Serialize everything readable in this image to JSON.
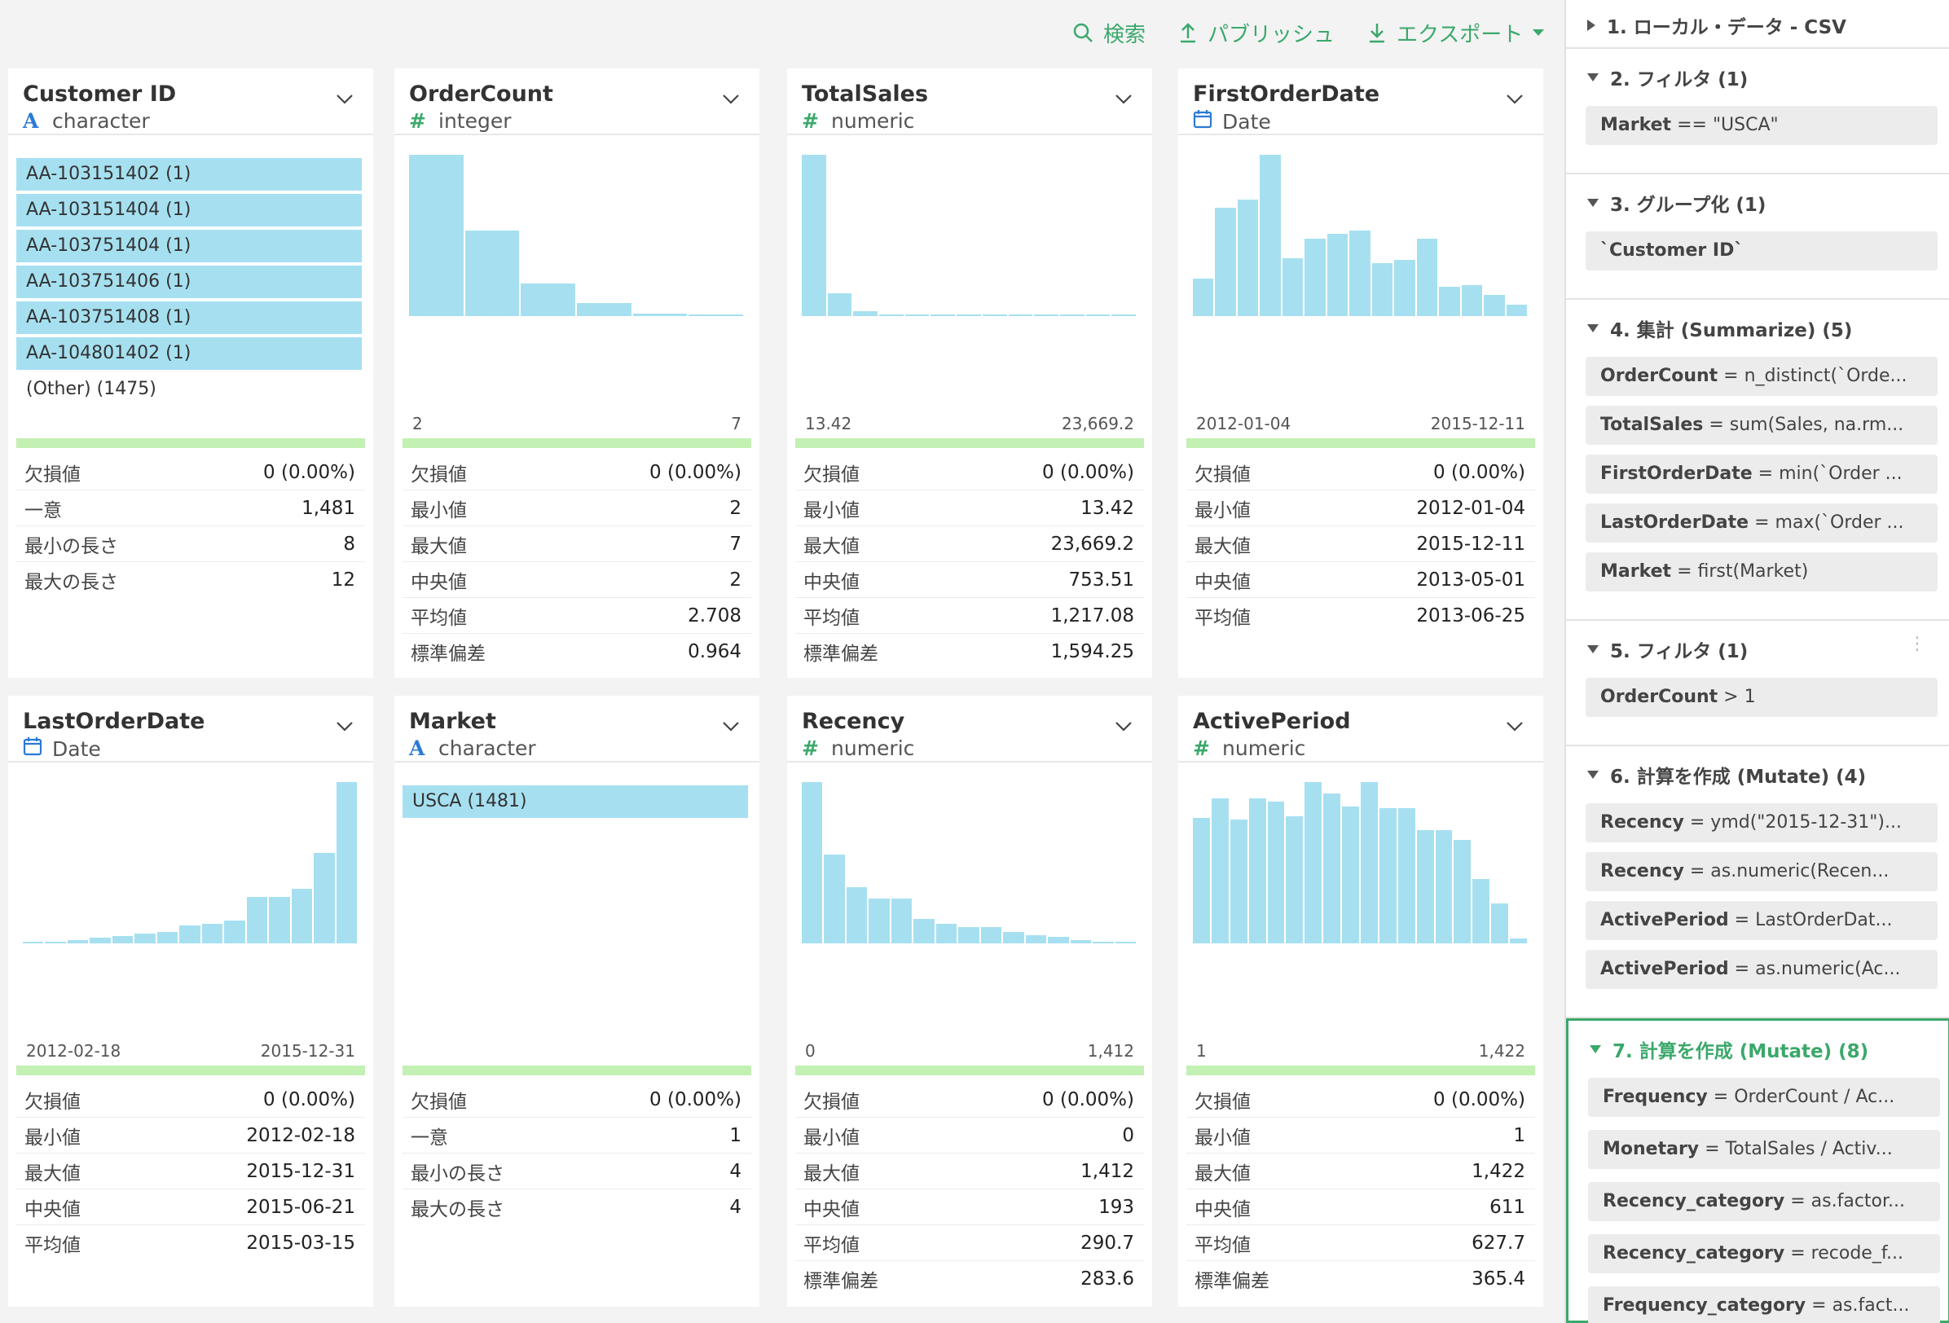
{
  "toolbar": {
    "search_label": "検索",
    "publish_label": "パブリッシュ",
    "export_label": "エクスポート"
  },
  "colors": {
    "accent": "#3ba86b",
    "bar": "#a6e0f0",
    "quality": "#c3f0b3",
    "char_icon": "#2a7ad6"
  },
  "columns": [
    {
      "name": "Customer ID",
      "type": "character",
      "type_icon": "A",
      "categories": [
        "AA-103151402 (1)",
        "AA-103151404 (1)",
        "AA-103751404 (1)",
        "AA-103751406 (1)",
        "AA-103751408 (1)",
        "AA-104801402 (1)"
      ],
      "other": "(Other) (1475)",
      "stats": [
        [
          "欠損値",
          "0 (0.00%)"
        ],
        [
          "一意",
          "1,481"
        ],
        [
          "最小の長さ",
          "8"
        ],
        [
          "最大の長さ",
          "12"
        ]
      ]
    },
    {
      "name": "OrderCount",
      "type": "integer",
      "type_icon": "#",
      "axis_min": "2",
      "axis_max": "7",
      "histogram": [
        100,
        53,
        20,
        8,
        1.5,
        1
      ],
      "stats": [
        [
          "欠損値",
          "0 (0.00%)"
        ],
        [
          "最小値",
          "2"
        ],
        [
          "最大値",
          "7"
        ],
        [
          "中央値",
          "2"
        ],
        [
          "平均値",
          "2.708"
        ],
        [
          "標準偏差",
          "0.964"
        ]
      ]
    },
    {
      "name": "TotalSales",
      "type": "numeric",
      "type_icon": "#",
      "axis_min": "13.42",
      "axis_max": "23,669.2",
      "histogram": [
        100,
        14,
        3,
        1,
        0.5,
        0.5,
        0.5,
        0.5,
        0.5,
        0.5,
        0.5,
        0.5,
        0.5
      ],
      "stats": [
        [
          "欠損値",
          "0 (0.00%)"
        ],
        [
          "最小値",
          "13.42"
        ],
        [
          "最大値",
          "23,669.2"
        ],
        [
          "中央値",
          "753.51"
        ],
        [
          "平均値",
          "1,217.08"
        ],
        [
          "標準偏差",
          "1,594.25"
        ]
      ]
    },
    {
      "name": "FirstOrderDate",
      "type": "Date",
      "type_icon": "calendar",
      "axis_min": "2012-01-04",
      "axis_max": "2015-12-11",
      "histogram": [
        23,
        67,
        72,
        100,
        36,
        48,
        51,
        53,
        33,
        35,
        48,
        18,
        19,
        13,
        7
      ],
      "stats": [
        [
          "欠損値",
          "0 (0.00%)"
        ],
        [
          "最小値",
          "2012-01-04"
        ],
        [
          "最大値",
          "2015-12-11"
        ],
        [
          "中央値",
          "2013-05-01"
        ],
        [
          "平均値",
          "2013-06-25"
        ]
      ]
    },
    {
      "name": "LastOrderDate",
      "type": "Date",
      "type_icon": "calendar",
      "axis_min": "2012-02-18",
      "axis_max": "2015-12-31",
      "histogram": [
        0.5,
        1,
        2,
        3.5,
        4.5,
        6,
        7,
        11,
        12,
        14,
        29,
        29,
        34,
        56,
        100
      ],
      "stats": [
        [
          "欠損値",
          "0 (0.00%)"
        ],
        [
          "最小値",
          "2012-02-18"
        ],
        [
          "最大値",
          "2015-12-31"
        ],
        [
          "中央値",
          "2015-06-21"
        ],
        [
          "平均値",
          "2015-03-15"
        ]
      ]
    },
    {
      "name": "Market",
      "type": "character",
      "type_icon": "A",
      "categories": [
        "USCA (1481)"
      ],
      "other": "",
      "stats": [
        [
          "欠損値",
          "0 (0.00%)"
        ],
        [
          "一意",
          "1"
        ],
        [
          "最小の長さ",
          "4"
        ],
        [
          "最大の長さ",
          "4"
        ]
      ]
    },
    {
      "name": "Recency",
      "type": "numeric",
      "type_icon": "#",
      "axis_min": "0",
      "axis_max": "1,412",
      "histogram": [
        100,
        55,
        35,
        28,
        28,
        15,
        12,
        10,
        10,
        7,
        5,
        4,
        2,
        1,
        0.5
      ],
      "stats": [
        [
          "欠損値",
          "0 (0.00%)"
        ],
        [
          "最小値",
          "0"
        ],
        [
          "最大値",
          "1,412"
        ],
        [
          "中央値",
          "193"
        ],
        [
          "平均値",
          "290.7"
        ],
        [
          "標準偏差",
          "283.6"
        ]
      ]
    },
    {
      "name": "ActivePeriod",
      "type": "numeric",
      "type_icon": "#",
      "axis_min": "1",
      "axis_max": "1,422",
      "histogram": [
        78,
        90,
        77,
        90,
        88,
        79,
        100,
        93,
        85,
        100,
        84,
        84,
        70,
        70,
        64,
        40,
        25,
        3
      ],
      "stats": [
        [
          "欠損値",
          "0 (0.00%)"
        ],
        [
          "最小値",
          "1"
        ],
        [
          "最大値",
          "1,422"
        ],
        [
          "中央値",
          "611"
        ],
        [
          "平均値",
          "627.7"
        ],
        [
          "標準偏差",
          "365.4"
        ]
      ]
    }
  ],
  "steps": [
    {
      "title": "1. ローカル・データ - CSV",
      "expanded": false,
      "commands": []
    },
    {
      "title": "2. フィルタ (1)",
      "expanded": true,
      "commands": [
        {
          "lhs": "Market",
          "op": " == ",
          "rhs": "\"USCA\""
        }
      ]
    },
    {
      "title": "3. グループ化 (1)",
      "expanded": true,
      "commands": [
        {
          "lhs": "`Customer ID`",
          "op": "",
          "rhs": ""
        }
      ]
    },
    {
      "title": "4. 集計 (Summarize) (5)",
      "expanded": true,
      "commands": [
        {
          "lhs": "OrderCount",
          "op": " = ",
          "rhs": "n_distinct(`Orde..."
        },
        {
          "lhs": "TotalSales",
          "op": " = ",
          "rhs": "sum(Sales, na.rm..."
        },
        {
          "lhs": "FirstOrderDate",
          "op": " = ",
          "rhs": "min(`Order ..."
        },
        {
          "lhs": "LastOrderDate",
          "op": " = ",
          "rhs": "max(`Order ..."
        },
        {
          "lhs": "Market",
          "op": " = ",
          "rhs": "first(Market)"
        }
      ]
    },
    {
      "title": "5. フィルタ (1)",
      "expanded": true,
      "commands": [
        {
          "lhs": "OrderCount",
          "op": " > ",
          "rhs": "1"
        }
      ]
    },
    {
      "title": "6. 計算を作成 (Mutate) (4)",
      "expanded": true,
      "commands": [
        {
          "lhs": "Recency",
          "op": " = ",
          "rhs": "ymd(\"2015-12-31\")..."
        },
        {
          "lhs": "Recency",
          "op": " = ",
          "rhs": "as.numeric(Recen..."
        },
        {
          "lhs": "ActivePeriod",
          "op": " = ",
          "rhs": "LastOrderDat..."
        },
        {
          "lhs": "ActivePeriod",
          "op": " = ",
          "rhs": "as.numeric(Ac..."
        }
      ]
    },
    {
      "title": "7. 計算を作成 (Mutate) (8)",
      "expanded": true,
      "active": true,
      "commands": [
        {
          "lhs": "Frequency",
          "op": " = ",
          "rhs": "OrderCount / Ac..."
        },
        {
          "lhs": "Monetary",
          "op": " = ",
          "rhs": "TotalSales / Activ..."
        },
        {
          "lhs": "Recency_category",
          "op": " = ",
          "rhs": "as.factor..."
        },
        {
          "lhs": "Recency_category",
          "op": " = ",
          "rhs": "recode_f..."
        },
        {
          "lhs": "Frequency_category",
          "op": " = ",
          "rhs": "as.fact..."
        }
      ]
    }
  ]
}
